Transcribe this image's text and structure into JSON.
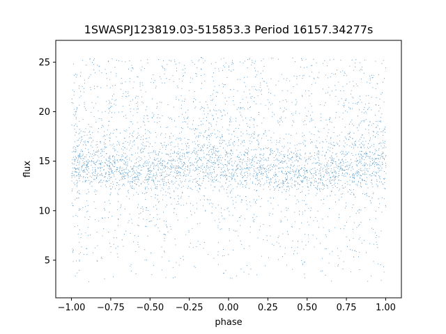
{
  "chart_data": {
    "type": "scatter",
    "title": "1SWASPJ123819.03-515853.3 Period 16157.34277s",
    "xlabel": "phase",
    "ylabel": "flux",
    "xlim": [
      -1.1,
      1.1
    ],
    "ylim": [
      1.2,
      27.2
    ],
    "x_ticks": [
      -1.0,
      -0.75,
      -0.5,
      -0.25,
      0.0,
      0.25,
      0.5,
      0.75,
      1.0
    ],
    "x_tick_labels": [
      "−1.00",
      "−0.75",
      "−0.50",
      "−0.25",
      "0.00",
      "0.25",
      "0.50",
      "0.75",
      "1.00"
    ],
    "y_ticks": [
      5,
      10,
      15,
      20,
      25
    ],
    "y_tick_labels": [
      "5",
      "10",
      "15",
      "20",
      "25"
    ],
    "grid": false,
    "legend": "none",
    "series": [
      {
        "color": "#1f77b4",
        "marker": "point",
        "x_range": [
          -1.0,
          1.0
        ],
        "dense_band": [
          11.5,
          19.5
        ],
        "core_flux": 13.8,
        "upper_scatter_max": 25.5,
        "lower_scatter_min": 2.5,
        "points": [
          [
            -1.0,
            13.8
          ],
          [
            -0.75,
            14.2
          ],
          [
            -0.5,
            13.9
          ],
          [
            -0.25,
            14.3
          ],
          [
            0.0,
            14.8
          ],
          [
            0.25,
            14.1
          ],
          [
            0.5,
            13.9
          ],
          [
            0.75,
            14.2
          ],
          [
            1.0,
            13.8
          ],
          [
            -0.95,
            8.1
          ],
          [
            -0.6,
            7.5
          ],
          [
            -0.45,
            8.3
          ],
          [
            -0.02,
            4.0
          ],
          [
            0.02,
            3.2
          ],
          [
            0.45,
            8.2
          ],
          [
            0.62,
            7.4
          ],
          [
            0.97,
            3.0
          ],
          [
            -0.86,
            24.8
          ],
          [
            0.12,
            25.3
          ],
          [
            0.6,
            24.9
          ]
        ]
      }
    ]
  }
}
